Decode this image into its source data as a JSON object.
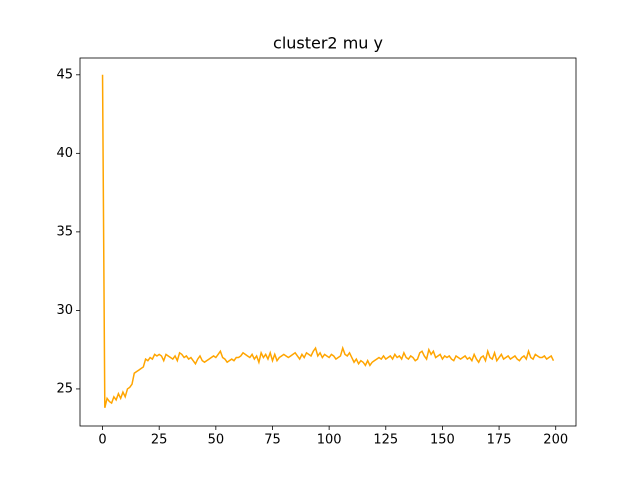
{
  "chart_data": {
    "type": "line",
    "title": "cluster2 mu y",
    "color": "#ffa500",
    "x": [
      0,
      1,
      2,
      3,
      4,
      5,
      6,
      7,
      8,
      9,
      10,
      11,
      12,
      13,
      14,
      15,
      16,
      17,
      18,
      19,
      20,
      21,
      22,
      23,
      24,
      25,
      26,
      27,
      28,
      29,
      30,
      31,
      32,
      33,
      34,
      35,
      36,
      37,
      38,
      39,
      40,
      41,
      42,
      43,
      44,
      45,
      46,
      47,
      48,
      49,
      50,
      51,
      52,
      53,
      54,
      55,
      56,
      57,
      58,
      59,
      60,
      61,
      62,
      63,
      64,
      65,
      66,
      67,
      68,
      69,
      70,
      71,
      72,
      73,
      74,
      75,
      76,
      77,
      78,
      79,
      80,
      81,
      82,
      83,
      84,
      85,
      86,
      87,
      88,
      89,
      90,
      91,
      92,
      93,
      94,
      95,
      96,
      97,
      98,
      99,
      100,
      101,
      102,
      103,
      104,
      105,
      106,
      107,
      108,
      109,
      110,
      111,
      112,
      113,
      114,
      115,
      116,
      117,
      118,
      119,
      120,
      121,
      122,
      123,
      124,
      125,
      126,
      127,
      128,
      129,
      130,
      131,
      132,
      133,
      134,
      135,
      136,
      137,
      138,
      139,
      140,
      141,
      142,
      143,
      144,
      145,
      146,
      147,
      148,
      149,
      150,
      151,
      152,
      153,
      154,
      155,
      156,
      157,
      158,
      159,
      160,
      161,
      162,
      163,
      164,
      165,
      166,
      167,
      168,
      169,
      170,
      171,
      172,
      173,
      174,
      175,
      176,
      177,
      178,
      179,
      180,
      181,
      182,
      183,
      184,
      185,
      186,
      187,
      188,
      189,
      190,
      191,
      192,
      193,
      194,
      195,
      196,
      197,
      198,
      199
    ],
    "values": [
      45,
      23.8,
      24.4,
      24.2,
      24.1,
      24.5,
      24.3,
      24.7,
      24.4,
      24.8,
      24.5,
      25.0,
      25.1,
      25.3,
      26.0,
      26.1,
      26.2,
      26.3,
      26.4,
      26.9,
      26.8,
      27.0,
      26.9,
      27.2,
      27.1,
      27.2,
      27.1,
      26.8,
      27.2,
      27.1,
      27.0,
      26.9,
      27.1,
      26.8,
      27.3,
      27.2,
      27.0,
      27.1,
      26.9,
      27.0,
      26.8,
      26.6,
      26.9,
      27.1,
      26.8,
      26.7,
      26.8,
      26.9,
      27.0,
      27.1,
      27.0,
      27.2,
      27.4,
      27.0,
      26.9,
      26.7,
      26.8,
      26.9,
      26.8,
      27.0,
      27.0,
      27.1,
      27.3,
      27.2,
      27.1,
      27.0,
      27.2,
      26.9,
      27.1,
      26.7,
      27.3,
      27.0,
      27.2,
      26.9,
      27.3,
      26.8,
      27.2,
      26.8,
      27.0,
      27.1,
      27.2,
      27.1,
      27.0,
      27.1,
      27.2,
      27.3,
      27.1,
      26.9,
      27.2,
      27.0,
      27.3,
      27.2,
      27.1,
      27.4,
      27.6,
      27.1,
      27.3,
      27.0,
      27.2,
      27.1,
      27.0,
      27.2,
      27.1,
      26.9,
      27.0,
      27.1,
      27.6,
      27.2,
      27.1,
      27.3,
      27.0,
      26.7,
      26.9,
      26.6,
      26.8,
      26.7,
      26.5,
      26.8,
      26.5,
      26.7,
      26.8,
      26.9,
      27.0,
      26.9,
      27.1,
      26.9,
      27.0,
      27.1,
      26.9,
      27.2,
      27.0,
      27.1,
      26.9,
      27.3,
      27.0,
      26.9,
      27.1,
      27.0,
      26.8,
      26.9,
      27.3,
      27.4,
      27.1,
      26.9,
      27.5,
      27.2,
      27.4,
      27.0,
      27.1,
      27.2,
      26.9,
      27.1,
      27.0,
      27.1,
      26.9,
      26.8,
      27.1,
      27.0,
      26.9,
      27.0,
      27.1,
      26.9,
      27.0,
      26.8,
      27.2,
      26.9,
      26.7,
      27.0,
      27.1,
      26.8,
      27.4,
      27.0,
      26.9,
      27.3,
      26.8,
      27.0,
      27.2,
      26.9,
      27.0,
      27.1,
      26.9,
      27.0,
      27.1,
      26.9,
      26.8,
      27.0,
      27.1,
      26.9,
      27.4,
      27.0,
      26.9,
      27.2,
      27.1,
      27.0,
      27.0,
      27.1,
      26.9,
      27.0,
      27.1,
      26.8
    ],
    "xlim": [
      -9.95,
      208.95
    ],
    "xticks": [
      0,
      25,
      50,
      75,
      100,
      125,
      150,
      175,
      200
    ],
    "ylim": [
      22.64,
      46.07
    ],
    "yticks": [
      25,
      30,
      35,
      40,
      45
    ]
  }
}
